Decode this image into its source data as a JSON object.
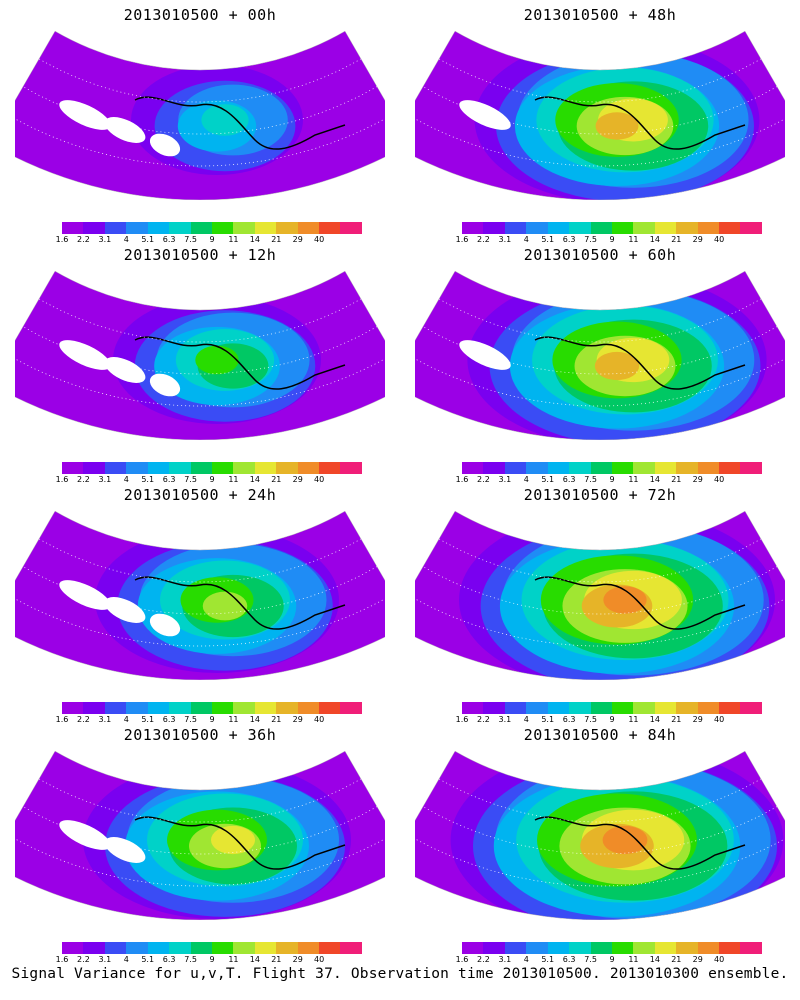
{
  "panels": [
    {
      "title": "2013010500 + 00h",
      "level": 0.15,
      "holes": 3
    },
    {
      "title": "2013010500 + 48h",
      "level": 0.62,
      "holes": 1
    },
    {
      "title": "2013010500 + 12h",
      "level": 0.3,
      "holes": 3
    },
    {
      "title": "2013010500 + 60h",
      "level": 0.68,
      "holes": 1
    },
    {
      "title": "2013010500 + 24h",
      "level": 0.45,
      "holes": 3
    },
    {
      "title": "2013010500 + 72h",
      "level": 0.75,
      "holes": 0
    },
    {
      "title": "2013010500 + 36h",
      "level": 0.55,
      "holes": 2
    },
    {
      "title": "2013010500 + 84h",
      "level": 0.82,
      "holes": 0
    }
  ],
  "colorbar": {
    "labels": [
      "1.6",
      "2.2",
      "3.1",
      "4",
      "5.1",
      "6.3",
      "7.5",
      "9",
      "11",
      "14",
      "21",
      "29",
      "40"
    ],
    "colors": [
      "#9b00e6",
      "#7a00f0",
      "#3a4cf5",
      "#1f8cf5",
      "#00b4f0",
      "#00d2c8",
      "#00c864",
      "#28dc00",
      "#a0e632",
      "#e6e632",
      "#e6b428",
      "#f08c28",
      "#f04628",
      "#f01e78"
    ]
  },
  "footer": "Signal Variance for u,v,T. Flight 37. Observation time 2013010500. 2013010300 ensemble."
}
